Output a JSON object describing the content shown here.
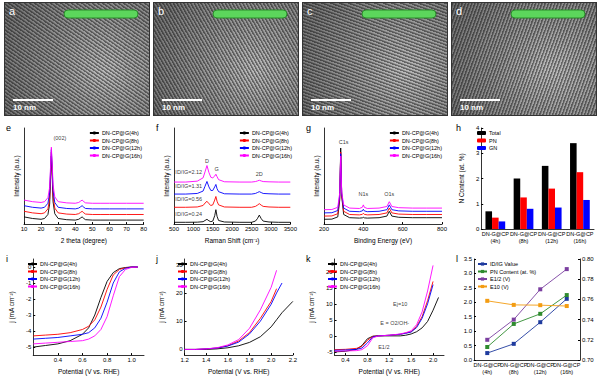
{
  "images": [
    {
      "title": "a",
      "scale_bar": "10 nm"
    },
    {
      "title": "b",
      "scale_bar": "10 nm"
    },
    {
      "title": "c",
      "scale_bar": "10 nm"
    },
    {
      "title": "d",
      "scale_bar": "10 nm"
    }
  ],
  "chart_data": [
    {
      "type": "line",
      "title": "e",
      "x_label": "2 theta (degree)",
      "y_label": "Intensity (a.u.)",
      "x": [
        10,
        15,
        20,
        22,
        24,
        25,
        25.5,
        26,
        26.5,
        27,
        28,
        30,
        35,
        40,
        42,
        43,
        44,
        45,
        46,
        50,
        55,
        60,
        70,
        80
      ],
      "series": [
        {
          "name": "DN-CP@G(4h)",
          "color": "#000000",
          "values": [
            0.9,
            0.7,
            0.6,
            0.7,
            1.2,
            2.5,
            5.5,
            8.5,
            6.0,
            2.8,
            1.3,
            0.7,
            0.55,
            0.5,
            0.6,
            0.75,
            0.9,
            0.7,
            0.55,
            0.5,
            0.5,
            0.5,
            0.5,
            0.5
          ]
        },
        {
          "name": "DN-CP@G(8h)",
          "color": "#ff0000",
          "values": [
            1.6,
            1.4,
            1.3,
            1.4,
            1.9,
            3.2,
            6.0,
            9.0,
            6.5,
            3.5,
            2.0,
            1.4,
            1.25,
            1.2,
            1.3,
            1.45,
            1.6,
            1.4,
            1.25,
            1.2,
            1.2,
            1.2,
            1.2,
            1.2
          ]
        },
        {
          "name": "DN-CP@G(12h)",
          "color": "#0000ff",
          "values": [
            2.3,
            2.1,
            2.0,
            2.1,
            2.6,
            3.9,
            6.5,
            9.3,
            7.0,
            4.2,
            2.7,
            2.1,
            1.95,
            1.9,
            2.0,
            2.15,
            2.3,
            2.1,
            1.95,
            1.9,
            1.9,
            1.9,
            1.9,
            1.9
          ]
        },
        {
          "name": "DN-CP@G(16h)",
          "color": "#ff00ff",
          "values": [
            3.0,
            2.8,
            2.7,
            2.8,
            3.3,
            4.6,
            7.0,
            9.6,
            7.5,
            4.9,
            3.4,
            2.8,
            2.65,
            2.6,
            2.7,
            2.85,
            3.0,
            2.8,
            2.65,
            2.6,
            2.6,
            2.6,
            2.6,
            2.6
          ]
        }
      ],
      "xlim": [
        10,
        80
      ],
      "xticks": [
        10,
        20,
        30,
        40,
        50,
        60,
        70,
        80
      ],
      "ylim": [
        0,
        12
      ],
      "tick_labels": "x",
      "legend": "top-right",
      "annotations": [
        {
          "text": "(002)",
          "x": 31,
          "y": 10.8
        }
      ]
    },
    {
      "type": "line",
      "title": "f",
      "x_label": "Raman Shift (cm⁻¹)",
      "y_label": "Intensity (a.u.)",
      "x": [
        500,
        800,
        1100,
        1250,
        1300,
        1350,
        1400,
        1450,
        1500,
        1550,
        1580,
        1610,
        1650,
        1800,
        2200,
        2500,
        2600,
        2650,
        2700,
        2750,
        2800,
        2950,
        3200,
        3500
      ],
      "series": [
        {
          "name": "DN-CP@G(4h)",
          "color": "#000000",
          "values": [
            0.3,
            0.3,
            0.32,
            0.4,
            0.6,
            0.8,
            0.55,
            0.4,
            0.5,
            1.4,
            2.4,
            1.3,
            0.6,
            0.35,
            0.3,
            0.3,
            0.5,
            0.9,
            1.5,
            0.9,
            0.5,
            0.35,
            0.3,
            0.3
          ]
        },
        {
          "name": "DN-CP@G(8h)",
          "color": "#ff0000",
          "values": [
            2.8,
            2.8,
            2.85,
            3.1,
            3.5,
            3.8,
            3.4,
            3.1,
            3.2,
            4.0,
            4.6,
            3.8,
            3.2,
            2.85,
            2.8,
            2.8,
            2.95,
            3.15,
            3.4,
            3.15,
            2.95,
            2.85,
            2.8,
            2.8
          ]
        },
        {
          "name": "DN-CP@G(12h)",
          "color": "#0000ff",
          "values": [
            5.0,
            5.0,
            5.1,
            5.5,
            6.3,
            7.1,
            6.2,
            5.6,
            5.6,
            6.2,
            6.6,
            5.9,
            5.4,
            5.05,
            5.0,
            5.0,
            5.1,
            5.25,
            5.4,
            5.25,
            5.1,
            5.05,
            5.0,
            5.0
          ]
        },
        {
          "name": "DN-CP@G(16h)",
          "color": "#ff00ff",
          "values": [
            7.0,
            7.0,
            7.15,
            7.7,
            8.7,
            9.75,
            8.6,
            7.8,
            7.7,
            8.0,
            8.3,
            7.9,
            7.4,
            7.05,
            7.0,
            7.0,
            7.08,
            7.18,
            7.3,
            7.18,
            7.08,
            7.04,
            7.0,
            7.0
          ]
        }
      ],
      "xlim": [
        500,
        3500
      ],
      "xticks": [
        500,
        1000,
        1500,
        2000,
        2500,
        3000,
        3500
      ],
      "ylim": [
        0,
        16
      ],
      "tick_labels": "x",
      "legend": "top-right",
      "annotations": [
        {
          "text": "D",
          "x": 1350,
          "y": 10.5
        },
        {
          "text": "G",
          "x": 1600,
          "y": 9.2
        },
        {
          "text": "2D",
          "x": 2700,
          "y": 8.3
        },
        {
          "text": "ID/IG=2.12",
          "x": 880,
          "y": 8.6
        },
        {
          "text": "ID/IG=1.31",
          "x": 880,
          "y": 6.4
        },
        {
          "text": "ID/IG=0.56",
          "x": 880,
          "y": 4.1
        },
        {
          "text": "ID/IG=0.24",
          "x": 880,
          "y": 1.6
        }
      ]
    },
    {
      "type": "line",
      "title": "g",
      "x_label": "Binding Energy (eV)",
      "y_label": "Intensity (a.u.)",
      "x": [
        200,
        240,
        270,
        280,
        285,
        290,
        300,
        330,
        380,
        395,
        400,
        405,
        420,
        480,
        520,
        532,
        545,
        580,
        650,
        720,
        800
      ],
      "series": [
        {
          "name": "DN-CP@G(4h)",
          "color": "#000000",
          "values": [
            0.6,
            0.62,
            0.9,
            3.0,
            9.5,
            3.5,
            1.2,
            0.8,
            0.75,
            0.78,
            0.85,
            0.78,
            0.75,
            0.8,
            1.0,
            1.6,
            1.0,
            0.85,
            0.8,
            0.8,
            0.8
          ]
        },
        {
          "name": "DN-CP@G(8h)",
          "color": "#ff0000",
          "values": [
            1.0,
            1.02,
            1.3,
            3.3,
            9.0,
            3.6,
            1.6,
            1.2,
            1.15,
            1.22,
            1.35,
            1.22,
            1.15,
            1.2,
            1.4,
            2.0,
            1.4,
            1.25,
            1.2,
            1.2,
            1.2
          ]
        },
        {
          "name": "DN-CP@G(12h)",
          "color": "#0000ff",
          "values": [
            1.4,
            1.42,
            1.7,
            3.6,
            8.8,
            3.8,
            2.0,
            1.6,
            1.55,
            1.65,
            1.85,
            1.65,
            1.55,
            1.6,
            1.8,
            2.4,
            1.8,
            1.65,
            1.6,
            1.6,
            1.6
          ]
        },
        {
          "name": "DN-CP@G(16h)",
          "color": "#ff00ff",
          "values": [
            1.8,
            1.82,
            2.1,
            3.9,
            8.5,
            4.0,
            2.4,
            2.0,
            1.95,
            2.1,
            2.4,
            2.1,
            1.95,
            2.0,
            2.2,
            2.8,
            2.2,
            2.05,
            2.0,
            2.0,
            2.0
          ]
        }
      ],
      "xlim": [
        200,
        800
      ],
      "xticks": [
        200,
        400,
        600,
        800
      ],
      "ylim": [
        0,
        12
      ],
      "tick_labels": "x",
      "legend": "top-right",
      "annotations": [
        {
          "text": "C1s",
          "x": 300,
          "y": 10.3
        },
        {
          "text": "N1s",
          "x": 400,
          "y": 3.8
        },
        {
          "text": "O1s",
          "x": 532,
          "y": 3.8
        }
      ]
    },
    {
      "type": "bar",
      "title": "h",
      "y_label": "N Content (at. %)",
      "categories": [
        "DN-G@CP\n(4h)",
        "DN-G@CP\n(8h)",
        "DN-G@CP\n(12h)",
        "DN-G@CP\n(16h)"
      ],
      "series": [
        {
          "name": "Total",
          "color": "#000000",
          "values": [
            0.7,
            2.0,
            2.5,
            3.4
          ]
        },
        {
          "name": "PN",
          "color": "#ff0000",
          "values": [
            0.45,
            1.25,
            1.6,
            2.25
          ]
        },
        {
          "name": "GN",
          "color": "#0000ff",
          "values": [
            0.3,
            0.8,
            0.85,
            1.15
          ]
        }
      ],
      "ylim": [
        0,
        4
      ],
      "yticks": [
        0,
        1,
        2,
        3,
        4
      ],
      "legend": "top-left"
    },
    {
      "type": "line",
      "title": "i",
      "x_label": "Potential (V vs. RHE)",
      "y_label": "j (mA cm⁻²)",
      "x": [
        0.2,
        0.3,
        0.4,
        0.5,
        0.6,
        0.65,
        0.7,
        0.75,
        0.8,
        0.85,
        0.9,
        0.95,
        1.0,
        1.05
      ],
      "series": [
        {
          "name": "DN-CP@G(4h)",
          "color": "#000000",
          "values": [
            -5.0,
            -4.9,
            -4.8,
            -4.6,
            -4.2,
            -3.8,
            -3.0,
            -1.9,
            -0.9,
            -0.35,
            -0.1,
            -0.03,
            0,
            0
          ]
        },
        {
          "name": "DN-CP@G(8h)",
          "color": "#ff0000",
          "values": [
            -4.3,
            -4.25,
            -4.2,
            -4.1,
            -3.9,
            -3.7,
            -3.3,
            -2.5,
            -1.4,
            -0.5,
            -0.15,
            -0.05,
            0,
            0
          ]
        },
        {
          "name": "DN-CP@G(12h)",
          "color": "#0000ff",
          "values": [
            -4.5,
            -4.45,
            -4.4,
            -4.3,
            -4.2,
            -4.1,
            -3.8,
            -3.2,
            -2.2,
            -1.0,
            -0.3,
            -0.08,
            0,
            0
          ]
        },
        {
          "name": "DN-CP@G(16h)",
          "color": "#ff00ff",
          "values": [
            -4.8,
            -4.75,
            -4.7,
            -4.65,
            -4.6,
            -4.5,
            -4.3,
            -3.9,
            -3.1,
            -1.8,
            -0.6,
            -0.15,
            -0.02,
            0
          ]
        }
      ],
      "xlim": [
        0.2,
        1.1
      ],
      "xticks": [
        0.4,
        0.6,
        0.8,
        {
          "value": 1,
          "label": "1.0"
        }
      ],
      "ylim": [
        -5.5,
        0.5
      ],
      "yticks": [
        -5,
        -4,
        -3,
        -2,
        -1,
        0
      ],
      "legend": "top-left"
    },
    {
      "type": "line",
      "title": "j",
      "x_label": "Potential (V vs. RHE)",
      "y_label": "j (mA cm⁻²)",
      "x": [
        1.2,
        1.3,
        1.4,
        1.5,
        1.6,
        1.7,
        1.8,
        1.9,
        2.0,
        2.05,
        2.1,
        2.2
      ],
      "series": [
        {
          "name": "DN-CP@G(4h)",
          "color": "#000000",
          "values": [
            0,
            0,
            0,
            0.2,
            0.6,
            1.3,
            2.5,
            4.5,
            8,
            10.5,
            13,
            17
          ]
        },
        {
          "name": "DN-CP@G(8h)",
          "color": "#ff0000",
          "values": [
            0,
            0,
            0.2,
            0.5,
            1.3,
            3,
            6,
            11,
            17,
            21.5,
            null,
            null
          ]
        },
        {
          "name": "DN-CP@G(12h)",
          "color": "#0000ff",
          "values": [
            0,
            0,
            0.2,
            0.5,
            1.2,
            2.6,
            5.5,
            10,
            16,
            20,
            23.5,
            null
          ]
        },
        {
          "name": "DN-CP@G(16h)",
          "color": "#ff00ff",
          "values": [
            0,
            0,
            0.2,
            0.6,
            1.6,
            3.5,
            7.5,
            14,
            22,
            28,
            null,
            null
          ]
        }
      ],
      "xlim": [
        1.2,
        2.2
      ],
      "xticks": [
        1.2,
        1.4,
        1.6,
        1.8,
        {
          "value": 2,
          "label": "2.0"
        },
        2.2
      ],
      "ylim": [
        -2,
        32
      ],
      "yticks": [
        0,
        10,
        20,
        30
      ],
      "legend": "top-left"
    },
    {
      "type": "line",
      "title": "k",
      "x_label": "Potential (V vs. RHE)",
      "y_label": "j (mA cm⁻²)",
      "x": [
        0.2,
        0.4,
        0.6,
        0.7,
        0.8,
        0.9,
        1.0,
        1.2,
        1.4,
        1.5,
        1.6,
        1.7,
        1.8,
        1.9,
        2.0,
        2.1
      ],
      "series": [
        {
          "name": "DN-CP@G(4h)",
          "color": "#000000",
          "values": [
            -5.0,
            -4.8,
            -4.2,
            -3.0,
            -0.9,
            -0.1,
            0,
            0,
            0,
            0.2,
            0.6,
            1.3,
            2.5,
            4.5,
            8,
            12
          ]
        },
        {
          "name": "DN-CP@G(8h)",
          "color": "#ff0000",
          "values": [
            -4.3,
            -4.2,
            -3.9,
            -3.3,
            -1.4,
            -0.15,
            0,
            0.2,
            0.5,
            0.9,
            1.3,
            3,
            6,
            11,
            17,
            null
          ]
        },
        {
          "name": "DN-CP@G(12h)",
          "color": "#0000ff",
          "values": [
            -4.5,
            -4.4,
            -4.2,
            -3.8,
            -2.2,
            -0.3,
            0,
            0.2,
            0.5,
            0.8,
            1.2,
            2.6,
            5.5,
            10,
            16,
            null
          ]
        },
        {
          "name": "DN-CP@G(16h)",
          "color": "#ff00ff",
          "values": [
            -4.8,
            -4.7,
            -4.6,
            -4.3,
            -3.1,
            -0.6,
            -0.02,
            0.2,
            0.6,
            1.0,
            1.6,
            3.5,
            7.5,
            14,
            22,
            null
          ]
        }
      ],
      "xlim": [
        0.2,
        2.2
      ],
      "xticks": [
        0.4,
        0.8,
        1.2,
        1.6,
        {
          "value": 2,
          "label": "2.0"
        }
      ],
      "ylim": [
        -6,
        24
      ],
      "yticks": [
        -5,
        0,
        5,
        10,
        15,
        20
      ],
      "legend": "top-left",
      "annotations": [
        {
          "text": "Ej=10",
          "x": 1.4,
          "y": 10
        },
        {
          "text": "E = O2/OH-",
          "x": 1.3,
          "y": 4
        },
        {
          "text": "E1/2",
          "x": 1.1,
          "y": -3.5
        }
      ]
    },
    {
      "type": "line",
      "title": "l",
      "marker": "square",
      "categories": [
        "DN-G@CP\n(4h)",
        "DN-G@CP\n(8h)",
        "DN-G@CP\n(12h)",
        "DN-G@CP\n(16h)"
      ],
      "series": [
        {
          "name": "ID/IG Value",
          "color": "#1f3b9e",
          "values": [
            0.24,
            0.56,
            1.31,
            2.12
          ]
        },
        {
          "name": "PN Content (at. %)",
          "color": "#2e8b2e",
          "values": [
            0.45,
            1.25,
            1.6,
            2.25
          ]
        },
        {
          "name": "E1/2 (V)",
          "color": "#7b3fa0",
          "values": [
            0.72,
            0.74,
            0.77,
            0.79
          ],
          "axis": "y2"
        },
        {
          "name": "E10 (V)",
          "color": "#f39c12",
          "values": [
            2.05,
            1.91,
            1.9,
            1.87
          ]
        }
      ],
      "ylim": [
        0,
        3.5
      ],
      "yticks": [
        {
          "value": 0,
          "label": "0.0"
        },
        0.5,
        {
          "value": 1,
          "label": "1.0"
        },
        1.5,
        {
          "value": 2,
          "label": "2.0"
        },
        2.5,
        {
          "value": 3,
          "label": "3.0"
        },
        3.5
      ],
      "y2lim": [
        0.7,
        0.8
      ],
      "y2ticks": [
        {
          "value": 0.7,
          "label": "0.70"
        },
        0.72,
        0.74,
        0.76,
        0.78,
        {
          "value": 0.8,
          "label": "0.80"
        }
      ],
      "legend": "top-left"
    }
  ]
}
